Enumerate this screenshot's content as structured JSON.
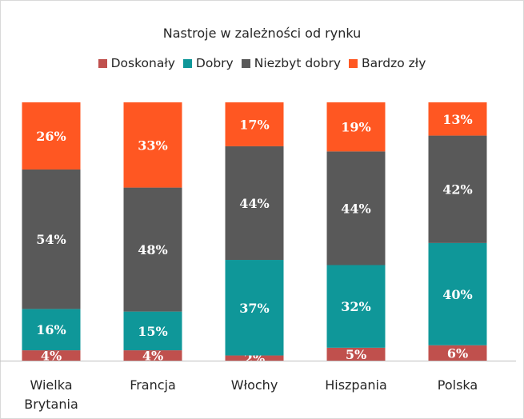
{
  "chart_data": {
    "type": "bar",
    "stacked": true,
    "percent_stacked": true,
    "title": "Nastroje w zależności od rynku",
    "categories": [
      "Wielka Brytania",
      "Francja",
      "Włochy",
      "Hiszpania",
      "Polska"
    ],
    "series": [
      {
        "name": "Doskonały",
        "color": "#c0504d",
        "values": [
          4,
          4,
          2,
          5,
          6
        ],
        "labels": [
          "4%",
          "4%",
          "2%",
          "5%",
          "6%"
        ]
      },
      {
        "name": "Dobry",
        "color": "#0f9799",
        "values": [
          16,
          15,
          37,
          32,
          40
        ],
        "labels": [
          "16%",
          "15%",
          "37%",
          "32%",
          "40%"
        ]
      },
      {
        "name": "Niezbyt dobry",
        "color": "#595959",
        "values": [
          54,
          48,
          44,
          44,
          42
        ],
        "labels": [
          "54%",
          "48%",
          "44%",
          "44%",
          "42%"
        ]
      },
      {
        "name": "Bardzo zły",
        "color": "#ff5722",
        "values": [
          26,
          33,
          17,
          19,
          13
        ],
        "labels": [
          "26%",
          "33%",
          "17%",
          "19%",
          "13%"
        ]
      }
    ],
    "legend_position": "top",
    "grid": false,
    "axis_line_color": "#bfbfbf",
    "label_color": "#ffffff"
  }
}
